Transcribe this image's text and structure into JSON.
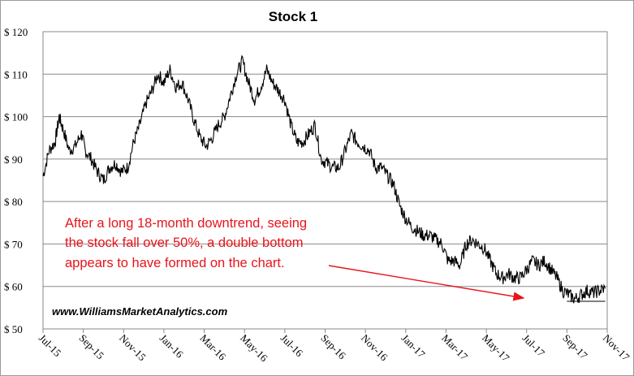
{
  "chart_data": {
    "type": "line",
    "title": "Stock 1",
    "xlabel": "",
    "ylabel": "",
    "ylim": [
      50,
      120
    ],
    "yticks": [
      50,
      60,
      70,
      80,
      90,
      100,
      110,
      120
    ],
    "ytick_labels": [
      "$ 50",
      "$ 60",
      "$ 70",
      "$ 80",
      "$ 90",
      "$ 100",
      "$ 110",
      "$ 120"
    ],
    "xticks": [
      "Jul-15",
      "Sep-15",
      "Nov-15",
      "Jan-16",
      "Mar-16",
      "May-16",
      "Jul-16",
      "Sep-16",
      "Nov-16",
      "Jan-17",
      "Mar-17",
      "May-17",
      "Jul-17",
      "Sep-17",
      "Nov-17"
    ],
    "xlim_months": [
      "Jul-15",
      "Nov-17"
    ],
    "grid": true,
    "line_color": "#000000",
    "series": [
      {
        "x_month_index": [
          0,
          0.3,
          0.6,
          0.8,
          1.0,
          1.3,
          1.6,
          1.9,
          2.1,
          2.4,
          2.7,
          3.0,
          3.3,
          3.6,
          3.9,
          4.2,
          4.5,
          4.8,
          5.1,
          5.4,
          5.7,
          6.0,
          6.3,
          6.6,
          6.9,
          7.2,
          7.5,
          7.8,
          8.1,
          8.4,
          8.7,
          9.0,
          9.3,
          9.6,
          9.9,
          10.2,
          10.5,
          10.8,
          11.1,
          11.4,
          11.7,
          12.0,
          12.3,
          12.6,
          12.9,
          13.2,
          13.5,
          13.8,
          14.1,
          14.4,
          14.7,
          15.0,
          15.3,
          15.6,
          15.9,
          16.2,
          16.5,
          16.8,
          17.1,
          17.4,
          17.7,
          18.0,
          18.3,
          18.6,
          18.9,
          19.2,
          19.5,
          19.8,
          20.1,
          20.4,
          20.7,
          21.0,
          21.3,
          21.6,
          21.9,
          22.2,
          22.5,
          22.8,
          23.1,
          23.4,
          23.7,
          24.0,
          24.3,
          24.6,
          24.9,
          25.2,
          25.5,
          25.8,
          26.1,
          26.4,
          26.7,
          27.0,
          27.3,
          27.6,
          27.9
        ],
        "y": [
          86,
          92,
          94,
          100,
          97,
          92,
          93,
          96,
          92,
          90,
          87,
          85,
          88,
          89,
          87,
          88,
          94,
          98,
          103,
          106,
          110,
          108,
          111,
          107,
          108,
          104,
          99,
          95,
          93,
          95,
          98,
          100,
          105,
          110,
          113,
          108,
          104,
          107,
          111,
          108,
          106,
          104,
          98,
          94,
          94,
          96,
          98,
          90,
          89,
          88,
          88,
          92,
          96,
          94,
          93,
          92,
          88,
          88,
          86,
          84,
          79,
          76,
          74,
          73,
          72,
          72,
          71,
          70,
          66,
          66,
          65,
          70,
          71,
          70,
          69,
          66,
          63,
          62,
          63,
          62,
          62,
          64,
          66,
          65,
          66,
          64,
          62,
          59,
          58,
          57,
          58,
          59,
          58.5,
          59,
          59.5
        ]
      }
    ],
    "support_line": {
      "y": 56.5,
      "x_start_month_index": 26.0,
      "x_end_month_index": 27.9
    },
    "annotations": [
      "After a long 18-month downtrend, seeing",
      "the stock fall over 50%, a double bottom",
      "appears to have formed on the chart."
    ],
    "annotation_color": "#e8141b",
    "watermark": "www.WilliamsMarketAnalytics.com"
  }
}
